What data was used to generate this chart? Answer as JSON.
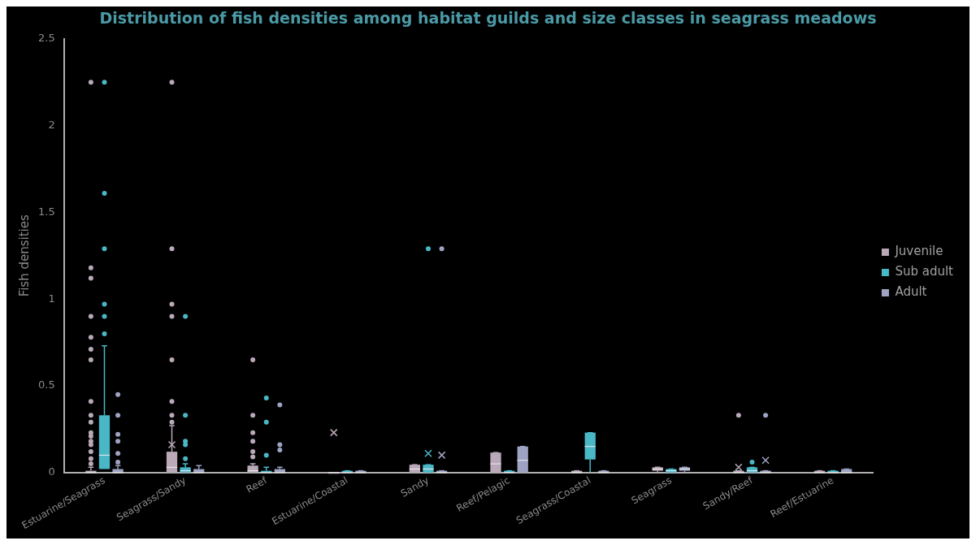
{
  "chart_data": {
    "type": "box",
    "title": "Distribution of fish densities among habitat guilds and size classes in seagrass meadows",
    "ylabel": "Fish densities",
    "categories": [
      "Estuarine/Seagrass",
      "Seagrass/Sandy",
      "Reef",
      "Estuarine/Coastal",
      "Sandy",
      "Reef/Pelagic",
      "Seagrass/Coastal",
      "Seagrass",
      "Sandy/Reef",
      "Reef/Estuarine"
    ],
    "ylim": [
      0,
      2.5
    ],
    "yticks": [
      0,
      0.5,
      1,
      1.5,
      2,
      2.5
    ],
    "grid": false,
    "legend": "right",
    "series": [
      {
        "name": "Juvenile",
        "color": "#b9a9b9",
        "boxes": [
          {
            "low": 0,
            "q1": 0,
            "median": 0,
            "q3": 0.01,
            "high": 0.03,
            "outliers": [
              2.25,
              1.18,
              1.12,
              0.9,
              0.78,
              0.71,
              0.65,
              0.41,
              0.33,
              0.29,
              0.23,
              0.21,
              0.18,
              0.16,
              0.12,
              0.08,
              0.05
            ]
          },
          {
            "low": 0,
            "q1": 0,
            "median": 0.03,
            "q3": 0.12,
            "high": 0.27,
            "mean": 0.16,
            "outliers": [
              2.25,
              1.29,
              0.97,
              0.9,
              0.65,
              0.41,
              0.33,
              0.29
            ]
          },
          {
            "low": 0,
            "q1": 0,
            "median": 0.01,
            "q3": 0.04,
            "high": 0.05,
            "outliers": [
              0.65,
              0.33,
              0.23,
              0.18,
              0.12,
              0.09
            ]
          },
          {
            "low": 0,
            "q1": 0,
            "median": 0,
            "q3": 0,
            "high": 0,
            "mean": 0.23
          },
          {
            "low": 0,
            "q1": 0,
            "median": 0.02,
            "q3": 0.045,
            "high": 0.045
          },
          {
            "low": 0,
            "q1": 0,
            "median": 0.05,
            "q3": 0.115,
            "high": 0.115
          },
          {
            "low": 0,
            "q1": 0,
            "median": 0,
            "q3": 0.01,
            "high": 0.01
          },
          {
            "low": 0,
            "q1": 0.01,
            "median": 0.02,
            "q3": 0.03,
            "high": 0.03
          },
          {
            "low": 0,
            "q1": 0,
            "median": 0,
            "q3": 0.01,
            "high": 0.01,
            "mean": 0.03,
            "outliers": [
              0.33
            ]
          },
          {
            "low": 0,
            "q1": 0,
            "median": 0,
            "q3": 0.01,
            "high": 0.01
          }
        ]
      },
      {
        "name": "Sub adult",
        "color": "#4ab7c7",
        "boxes": [
          {
            "low": 0.02,
            "q1": 0.02,
            "median": 0.1,
            "q3": 0.33,
            "high": 0.73,
            "outliers": [
              2.25,
              1.61,
              1.29,
              0.97,
              0.9,
              0.8
            ]
          },
          {
            "low": 0,
            "q1": 0,
            "median": 0.01,
            "q3": 0.03,
            "high": 0.05,
            "outliers": [
              0.9,
              0.33,
              0.18,
              0.16,
              0.08
            ]
          },
          {
            "low": 0,
            "q1": 0,
            "median": 0,
            "q3": 0.01,
            "high": 0.03,
            "outliers": [
              0.43,
              0.29,
              0.1
            ]
          },
          {
            "low": 0,
            "q1": 0,
            "median": 0,
            "q3": 0.01,
            "high": 0.01
          },
          {
            "low": 0,
            "q1": 0,
            "median": 0.02,
            "q3": 0.045,
            "high": 0.045,
            "mean": 0.11,
            "outliers": [
              1.29
            ]
          },
          {
            "low": 0,
            "q1": 0,
            "median": 0,
            "q3": 0.01,
            "high": 0.01
          },
          {
            "low": 0,
            "q1": 0.075,
            "median": 0.15,
            "q3": 0.23,
            "high": 0.23
          },
          {
            "low": 0,
            "q1": 0,
            "median": 0.01,
            "q3": 0.02,
            "high": 0.02
          },
          {
            "low": 0,
            "q1": 0,
            "median": 0.01,
            "q3": 0.03,
            "high": 0.03,
            "outliers": [
              0.06
            ]
          },
          {
            "low": 0,
            "q1": 0,
            "median": 0,
            "q3": 0.01,
            "high": 0.01
          }
        ]
      },
      {
        "name": "Adult",
        "color": "#9ea3c3",
        "boxes": [
          {
            "low": 0,
            "q1": 0,
            "median": 0,
            "q3": 0.02,
            "high": 0.04,
            "outliers": [
              0.45,
              0.33,
              0.22,
              0.18,
              0.11,
              0.06
            ]
          },
          {
            "low": 0,
            "q1": 0,
            "median": 0,
            "q3": 0.02,
            "high": 0.04
          },
          {
            "low": 0,
            "q1": 0,
            "median": 0,
            "q3": 0.02,
            "high": 0.03,
            "outliers": [
              0.39,
              0.16,
              0.13
            ]
          },
          {
            "low": 0,
            "q1": 0,
            "median": 0,
            "q3": 0.01,
            "high": 0.01
          },
          {
            "low": 0,
            "q1": 0,
            "median": 0,
            "q3": 0.01,
            "high": 0.01,
            "mean": 0.1,
            "outliers": [
              1.29
            ]
          },
          {
            "low": 0,
            "q1": 0,
            "median": 0.07,
            "q3": 0.15,
            "high": 0.15
          },
          {
            "low": 0,
            "q1": 0,
            "median": 0,
            "q3": 0.01,
            "high": 0.01
          },
          {
            "low": 0,
            "q1": 0.01,
            "median": 0.02,
            "q3": 0.03,
            "high": 0.03
          },
          {
            "low": 0,
            "q1": 0,
            "median": 0,
            "q3": 0.01,
            "high": 0.01,
            "mean": 0.07,
            "outliers": [
              0.33
            ]
          },
          {
            "low": 0,
            "q1": 0,
            "median": 0,
            "q3": 0.02,
            "high": 0.02
          }
        ]
      }
    ]
  }
}
